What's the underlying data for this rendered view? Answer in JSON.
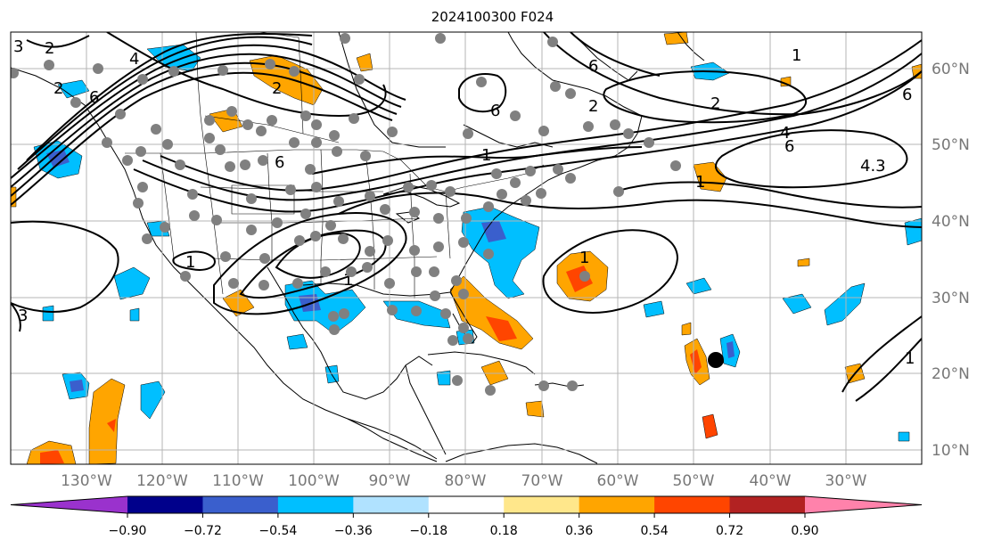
{
  "title": "2024100300 F024",
  "lon_labels": [
    "130°W",
    "120°W",
    "110°W",
    "100°W",
    "90°W",
    "80°W",
    "70°W",
    "60°W",
    "50°W",
    "40°W",
    "30°W"
  ],
  "lat_labels": [
    "60°N",
    "50°N",
    "40°N",
    "30°N",
    "20°N",
    "10°N"
  ],
  "colorbar": {
    "ticks": [
      "−0.90",
      "−0.72",
      "−0.54",
      "−0.36",
      "−0.18",
      "0.18",
      "0.36",
      "0.54",
      "0.72",
      "0.90"
    ],
    "colors": [
      "#9a32cd",
      "#00008b",
      "#3a5fcd",
      "#00bfff",
      "#b0e2ff",
      "#ffffff",
      "#ffe78b",
      "#ffa500",
      "#ff4500",
      "#b22222",
      "#ff82ab"
    ]
  },
  "contour_labels": [
    "3",
    "2",
    "4",
    "2",
    "6",
    "1",
    "6",
    "2",
    "4",
    "6",
    "4.3",
    "2",
    "1",
    "1",
    "6",
    "6",
    "1",
    "1",
    "1",
    "3",
    "2",
    "1",
    "6"
  ],
  "colors": {
    "grid": "#b4b4b4",
    "coast": "#000000",
    "dots": "#808080",
    "orange": "#ffa500",
    "red": "#ff4500",
    "blue": "#00bfff",
    "darkblue": "#3a5fcd",
    "marker": "#000000"
  }
}
